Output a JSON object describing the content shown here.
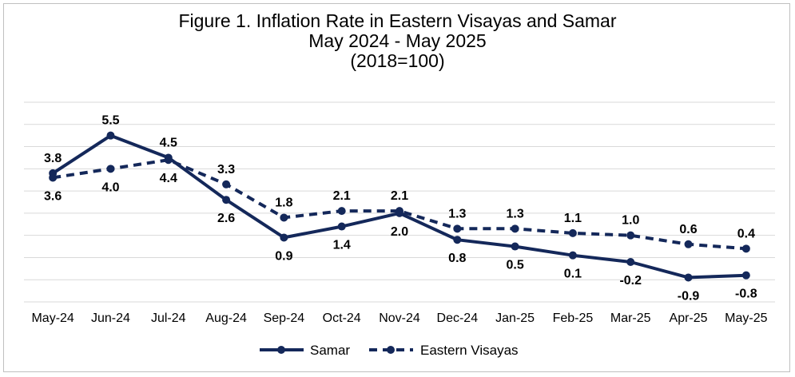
{
  "chart_data": {
    "type": "line",
    "title": "Figure 1. Inflation Rate in Eastern Visayas and Samar",
    "subtitle": "May 2024 - May 2025",
    "subtitle2": "(2018=100)",
    "categories": [
      "May-24",
      "Jun-24",
      "Jul-24",
      "Aug-24",
      "Sep-24",
      "Oct-24",
      "Nov-24",
      "Dec-24",
      "Jan-25",
      "Feb-25",
      "Mar-25",
      "Apr-25",
      "May-25"
    ],
    "series": [
      {
        "name": "Samar",
        "values": [
          3.8,
          5.5,
          4.5,
          2.6,
          0.9,
          1.4,
          2.0,
          0.8,
          0.5,
          0.1,
          -0.2,
          -0.9,
          -0.8
        ],
        "style": "solid",
        "color": "#14285a"
      },
      {
        "name": "Eastern Visayas",
        "values": [
          3.6,
          4.0,
          4.4,
          3.3,
          1.8,
          2.1,
          2.1,
          1.3,
          1.3,
          1.1,
          1.0,
          0.6,
          0.4
        ],
        "style": "dashed",
        "color": "#14285a"
      }
    ],
    "ylim": [
      -2,
      7
    ],
    "grid": true,
    "legend": "bottom-center"
  }
}
